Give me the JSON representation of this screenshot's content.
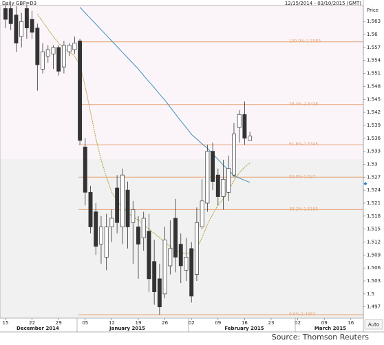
{
  "chart_data": {
    "type": "candlestick",
    "title": "Daily GBP=D3",
    "subtitle": "12/15/2014 - 03/10/2015 (GMT)",
    "y_label": "Price",
    "source": "Source: Thomson Reuters",
    "scale_button": "Auto",
    "categories": [
      "15",
      null,
      null,
      null,
      null,
      "22",
      null,
      null,
      null,
      null,
      "29",
      null,
      null,
      null,
      null,
      "05",
      null,
      null,
      null,
      null,
      "12",
      null,
      null,
      null,
      null,
      "19",
      null,
      null,
      null,
      null,
      "26",
      null,
      null,
      null,
      null,
      "02",
      null,
      null,
      null,
      null,
      "09",
      null,
      null,
      null,
      null,
      "16",
      null,
      null,
      null,
      null,
      "23",
      null,
      null,
      null,
      null,
      "02",
      null,
      null,
      null,
      null,
      "09",
      null,
      null,
      null,
      null,
      "16",
      null,
      null
    ],
    "months": [
      "December 2014",
      "January 2015",
      "February 2015",
      "March 2015"
    ],
    "open": [
      1.566,
      1.566,
      1.5645,
      1.5595,
      1.566,
      1.5635,
      1.5615,
      1.552,
      1.555,
      1.5555,
      1.557,
      1.5525,
      1.556,
      1.5565,
      1.5585,
      1.534,
      1.5235,
      1.519,
      1.5115,
      1.5085,
      1.5155,
      1.5245,
      1.5155,
      1.524,
      1.5165,
      1.5155,
      1.513,
      1.5145,
      1.5075,
      1.5035,
      1.5,
      1.5065,
      1.5175,
      1.5115,
      1.5055,
      1.5105,
      1.5045,
      1.5155,
      1.521,
      1.533,
      1.5275,
      1.5225,
      1.5235,
      1.5275,
      1.5385,
      1.5415,
      1.5355,
      null,
      null,
      null,
      null,
      null,
      null,
      null,
      null,
      null,
      null,
      null,
      null,
      null,
      null,
      null,
      null,
      null,
      null,
      null,
      null,
      null
    ],
    "high": [
      1.567,
      1.567,
      1.5665,
      1.565,
      1.567,
      1.5655,
      1.5625,
      1.558,
      1.5575,
      1.5575,
      1.5575,
      1.5585,
      1.558,
      1.5595,
      1.559,
      1.536,
      1.525,
      1.521,
      1.518,
      1.5185,
      1.5195,
      1.5275,
      1.529,
      1.526,
      1.5215,
      1.518,
      1.519,
      1.5185,
      1.5125,
      1.507,
      1.5155,
      1.517,
      1.522,
      1.514,
      1.513,
      1.512,
      1.52,
      1.5265,
      1.5345,
      1.535,
      1.529,
      1.531,
      1.532,
      1.5395,
      1.5425,
      1.5445,
      1.5375,
      null,
      null,
      null,
      null,
      null,
      null,
      null,
      null,
      null,
      null,
      null,
      null,
      null,
      null,
      null,
      null,
      null,
      null,
      null,
      null,
      null
    ],
    "low": [
      1.5615,
      1.561,
      1.556,
      1.557,
      1.559,
      1.559,
      1.547,
      1.551,
      1.5535,
      1.552,
      1.5505,
      1.551,
      1.555,
      1.5555,
      1.5345,
      1.5205,
      1.514,
      1.509,
      1.507,
      1.5055,
      1.512,
      1.514,
      1.5115,
      1.5105,
      1.507,
      1.5035,
      1.51,
      1.5005,
      1.4975,
      1.4952,
      1.499,
      1.5045,
      1.505,
      1.5025,
      1.503,
      1.498,
      1.503,
      1.515,
      1.519,
      1.524,
      1.5205,
      1.5195,
      1.5215,
      1.527,
      1.535,
      1.5345,
      1.5355,
      null,
      null,
      null,
      null,
      null,
      null,
      null,
      null,
      null,
      null,
      null,
      null,
      null,
      null,
      null,
      null,
      null,
      null,
      null,
      null,
      null
    ],
    "close": [
      1.5635,
      1.5625,
      1.558,
      1.563,
      1.5615,
      1.5605,
      1.553,
      1.556,
      1.5565,
      1.557,
      1.5515,
      1.5575,
      1.5575,
      1.558,
      1.5355,
      1.5235,
      1.5155,
      1.511,
      1.5155,
      1.5155,
      1.5175,
      1.5165,
      1.5275,
      1.5155,
      1.5195,
      1.5115,
      1.5175,
      1.5035,
      1.5005,
      1.497,
      1.5125,
      1.5105,
      1.5085,
      1.5065,
      1.5085,
      1.4995,
      1.5165,
      1.5215,
      1.533,
      1.526,
      1.5225,
      1.5265,
      1.529,
      1.537,
      1.5415,
      1.536,
      1.5365,
      null,
      null,
      null,
      null,
      null,
      null,
      null,
      null,
      null,
      null,
      null,
      null,
      null,
      null,
      null,
      null,
      null,
      null,
      null,
      null,
      null
    ],
    "up_color": "#ffffff",
    "down_color": "#333333",
    "lines": [
      {
        "color": "#b0a23a",
        "values": [
          null,
          null,
          null,
          null,
          null,
          null,
          1.5647,
          1.563,
          1.5612,
          1.5595,
          1.558,
          1.5568,
          1.556,
          1.555,
          1.553,
          1.548,
          1.542,
          1.536,
          1.531,
          1.527,
          1.5235,
          1.5215,
          1.52,
          1.5188,
          1.5178,
          1.5171,
          1.516,
          1.515,
          1.514,
          1.513,
          1.512,
          1.511,
          1.51,
          1.5095,
          1.5094,
          1.5096,
          1.5105,
          1.513,
          1.516,
          1.5185,
          1.5205,
          1.522,
          1.524,
          1.5262,
          1.528,
          1.5293,
          1.5303,
          null,
          null,
          null,
          null,
          null,
          null,
          null,
          null,
          null,
          null,
          null,
          null,
          null,
          null,
          null,
          null,
          null,
          null,
          null,
          null,
          null
        ]
      },
      {
        "color": "#3f8fb8",
        "values": [
          null,
          null,
          null,
          null,
          null,
          null,
          null,
          null,
          null,
          null,
          null,
          null,
          null,
          null,
          1.5663,
          1.565,
          1.5637,
          1.5624,
          1.5611,
          1.5598,
          1.5585,
          1.5572,
          1.5559,
          1.5546,
          1.5533,
          1.552,
          1.5505,
          1.5491,
          1.5477,
          1.5462,
          1.5448,
          1.5432,
          1.5416,
          1.54,
          1.5385,
          1.5369,
          1.5358,
          1.5347,
          1.5337,
          1.5324,
          1.5311,
          1.5298,
          1.5286,
          1.5274,
          1.5268,
          1.5263,
          1.5258,
          null,
          null,
          null,
          null,
          null,
          null,
          null,
          null,
          null,
          null,
          null,
          null,
          null,
          null,
          null,
          null,
          null,
          null,
          null,
          null,
          null
        ]
      }
    ],
    "levels": [
      {
        "label": "100.0%-1.5583",
        "value": 1.5583
      },
      {
        "label": "76.4%-1.5438",
        "value": 1.5438
      },
      {
        "label": "61.8%-1.5345",
        "value": 1.5345
      },
      {
        "label": "50.0%-1.527",
        "value": 1.527
      },
      {
        "label": "38.2%-1.5195",
        "value": 1.5195
      },
      {
        "label": "0.0%-1.4952",
        "value": 1.4952
      }
    ],
    "level_color": "#e8a070",
    "shade_above": 1.5312,
    "markers": [
      {
        "value": 1.5255,
        "color": "#2a7fc0"
      }
    ],
    "ylim": [
      1.4944,
      1.5667
    ],
    "yticks": [
      1.563,
      1.56,
      1.557,
      1.554,
      1.551,
      1.548,
      1.545,
      1.542,
      1.539,
      1.536,
      1.533,
      1.53,
      1.527,
      1.524,
      1.521,
      1.518,
      1.515,
      1.512,
      1.509,
      1.506,
      1.503,
      1.5,
      1.497
    ]
  }
}
